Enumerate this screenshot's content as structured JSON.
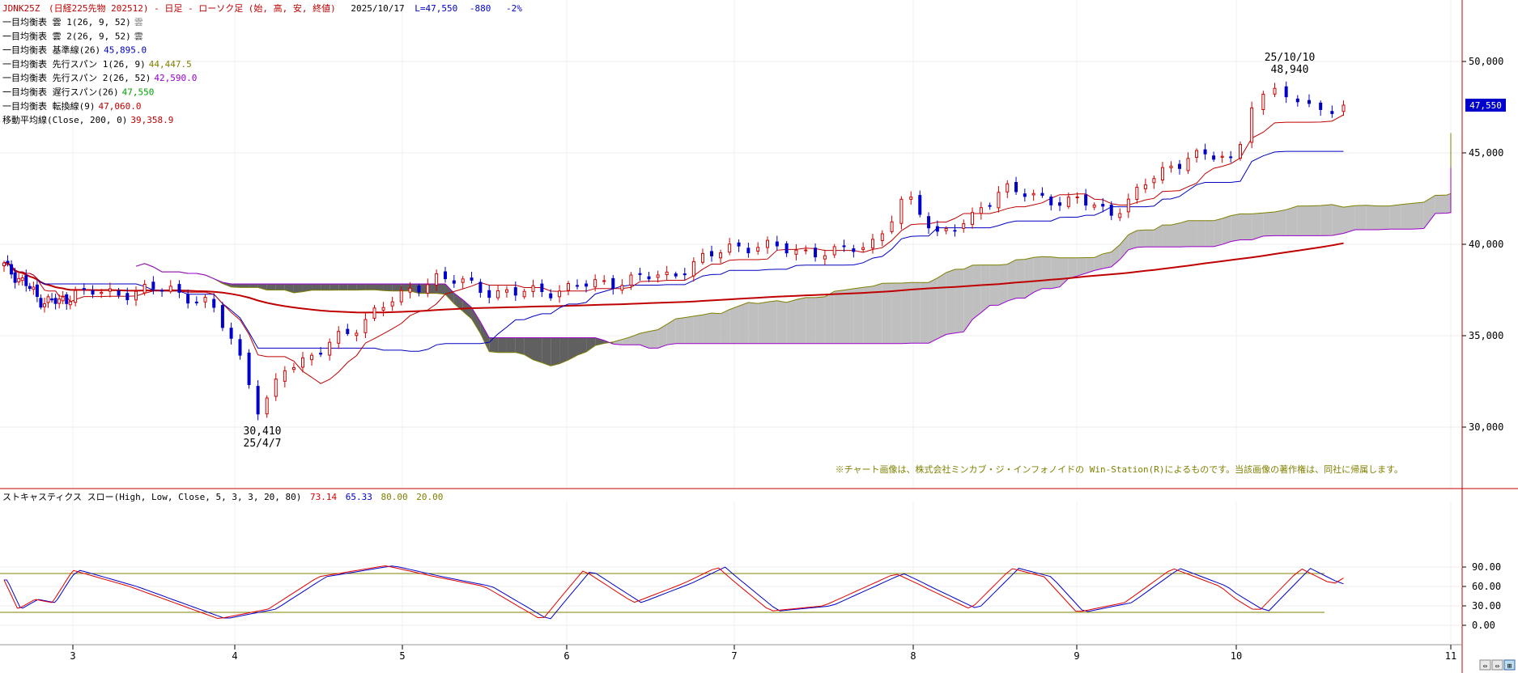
{
  "header": {
    "symbol": "JDNK25Z",
    "description": "(日経225先物 202512) - 日足 - ローソク足 (始, 高, 安, 終値)",
    "date": "2025/10/17",
    "last": "L=47,550",
    "change": "-880",
    "change_pct": "-2%"
  },
  "legend": [
    {
      "label": "一目均衡表 雲 1(26, 9, 52)",
      "value": "雲",
      "color": "#808080"
    },
    {
      "label": "一目均衡表 雲 2(26, 9, 52)",
      "value": "雲",
      "color": "#404040"
    },
    {
      "label": "一目均衡表 基準線(26)",
      "value": "45,895.0",
      "color": "#0000c0"
    },
    {
      "label": "一目均衡表 先行スパン 1(26, 9)",
      "value": "44,447.5",
      "color": "#808000"
    },
    {
      "label": "一目均衡表 先行スパン 2(26, 52)",
      "value": "42,590.0",
      "color": "#9900cc"
    },
    {
      "label": "一目均衡表 遅行スパン(26)",
      "value": "47,550",
      "color": "#00a000"
    },
    {
      "label": "一目均衡表 転換線(9)",
      "value": "47,060.0",
      "color": "#c00000"
    },
    {
      "label": "移動平均線(Close, 200, 0)",
      "value": "39,358.9",
      "color": "#c00000"
    }
  ],
  "annotations": {
    "high_date": "25/10/10",
    "high_value": "48,940",
    "low_value": "30,410",
    "low_date": "25/4/7",
    "last_price": "47,550",
    "copyright": "※チャート画像は、株式会社ミンカブ・ジ・インフォノイドの Win-Station(R)によるものです。当該画像の著作権は、同社に帰属します。"
  },
  "stoch_legend": {
    "label": "ストキャスティクス スロー(High, Low, Close, 5, 3, 3, 20, 80)",
    "k": "73.14",
    "d": "65.33",
    "upper": "80.00",
    "lower": "20.00"
  },
  "colors": {
    "up": "#d00000",
    "down": "#0000cc",
    "tenkan": "#c00000",
    "kijun": "#0000c0",
    "chikou": "#00a000",
    "span1": "#808000",
    "span2": "#9900cc",
    "cloud_up": "#bfbfbf",
    "cloud_down": "#606060",
    "ma200": "#c00000",
    "stoch_k": "#e00000",
    "stoch_d": "#0000cc",
    "stoch_band": "#808000"
  },
  "chart_data": [
    {
      "type": "candlestick",
      "title": "JDNK25Z (日経225先物 202512) - 日足 - ローソク足 (始, 高, 安, 終値)",
      "y_ticks": [
        "30,000",
        "35,000",
        "40,000",
        "45,000",
        "50,000"
      ],
      "ylim": [
        25000,
        53000
      ],
      "x_ticks": [
        "3",
        "4",
        "5",
        "6",
        "7",
        "8",
        "9",
        "10",
        "11"
      ],
      "series": [
        {
          "name": "一目均衡表 転換線(9)",
          "last": 47060
        },
        {
          "name": "一目均衡表 基準線(26)",
          "last": 45895
        },
        {
          "name": "一目均衡表 先行スパン 1(26, 9)",
          "last": 44447.5
        },
        {
          "name": "一目均衡表 先行スパン 2(26, 52)",
          "last": 42590
        },
        {
          "name": "一目均衡表 遅行スパン(26)",
          "last": 47550
        },
        {
          "name": "移動平均線(Close, 200, 0)",
          "last": 39358.9
        }
      ],
      "key_points": {
        "high": 48940,
        "low": 30410,
        "last": 47550
      },
      "path_nodes": [
        [
          2.0,
          38800
        ],
        [
          2.3,
          37900
        ],
        [
          2.5,
          37000
        ],
        [
          2.8,
          36800
        ],
        [
          3.0,
          37300
        ],
        [
          3.4,
          37400
        ],
        [
          3.6,
          37600
        ],
        [
          3.85,
          36600
        ],
        [
          4.0,
          34600
        ],
        [
          4.1,
          32200
        ],
        [
          4.15,
          30600
        ],
        [
          4.3,
          33200
        ],
        [
          4.5,
          34200
        ],
        [
          4.7,
          35200
        ],
        [
          4.85,
          36600
        ],
        [
          5.0,
          37100
        ],
        [
          5.2,
          38300
        ],
        [
          5.5,
          37500
        ],
        [
          5.7,
          37300
        ],
        [
          6.0,
          37600
        ],
        [
          6.3,
          38000
        ],
        [
          6.6,
          38300
        ],
        [
          6.85,
          39300
        ],
        [
          7.0,
          40000
        ],
        [
          7.3,
          39700
        ],
        [
          7.6,
          39500
        ],
        [
          7.8,
          40300
        ],
        [
          7.95,
          42500
        ],
        [
          8.15,
          40700
        ],
        [
          8.35,
          41200
        ],
        [
          8.55,
          43300
        ],
        [
          8.75,
          42400
        ],
        [
          9.0,
          42500
        ],
        [
          9.2,
          41600
        ],
        [
          9.45,
          43400
        ],
        [
          9.7,
          44900
        ],
        [
          10.0,
          44600
        ],
        [
          10.05,
          47700
        ],
        [
          10.2,
          48300
        ],
        [
          10.35,
          47500
        ],
        [
          10.5,
          47550
        ]
      ]
    },
    {
      "type": "line",
      "title": "ストキャスティクス スロー(High, Low, Close, 5, 3, 3, 20, 80)",
      "y_ticks": [
        "90.00",
        "60.00",
        "30.00",
        "0.00"
      ],
      "ylim": [
        -10,
        115
      ],
      "bands": [
        20,
        80
      ],
      "x_ticks": [
        "3",
        "4",
        "5",
        "6",
        "7",
        "8",
        "9",
        "10",
        "11"
      ],
      "series": [
        {
          "name": "%K",
          "last": 73.14
        },
        {
          "name": "%D",
          "last": 65.33
        }
      ],
      "k_nodes": [
        [
          2.0,
          70
        ],
        [
          2.2,
          25
        ],
        [
          2.45,
          40
        ],
        [
          2.7,
          35
        ],
        [
          3.0,
          85
        ],
        [
          3.35,
          60
        ],
        [
          3.9,
          10
        ],
        [
          4.2,
          25
        ],
        [
          4.5,
          75
        ],
        [
          4.9,
          92
        ],
        [
          5.2,
          75
        ],
        [
          5.5,
          60
        ],
        [
          5.85,
          8
        ],
        [
          6.1,
          85
        ],
        [
          6.4,
          35
        ],
        [
          6.7,
          65
        ],
        [
          6.9,
          90
        ],
        [
          7.2,
          22
        ],
        [
          7.5,
          30
        ],
        [
          7.9,
          80
        ],
        [
          8.1,
          55
        ],
        [
          8.35,
          25
        ],
        [
          8.6,
          88
        ],
        [
          8.8,
          75
        ],
        [
          9.0,
          20
        ],
        [
          9.3,
          35
        ],
        [
          9.6,
          88
        ],
        [
          9.9,
          60
        ],
        [
          10.1,
          20
        ],
        [
          10.3,
          88
        ],
        [
          10.45,
          63
        ],
        [
          10.5,
          73
        ]
      ]
    }
  ]
}
